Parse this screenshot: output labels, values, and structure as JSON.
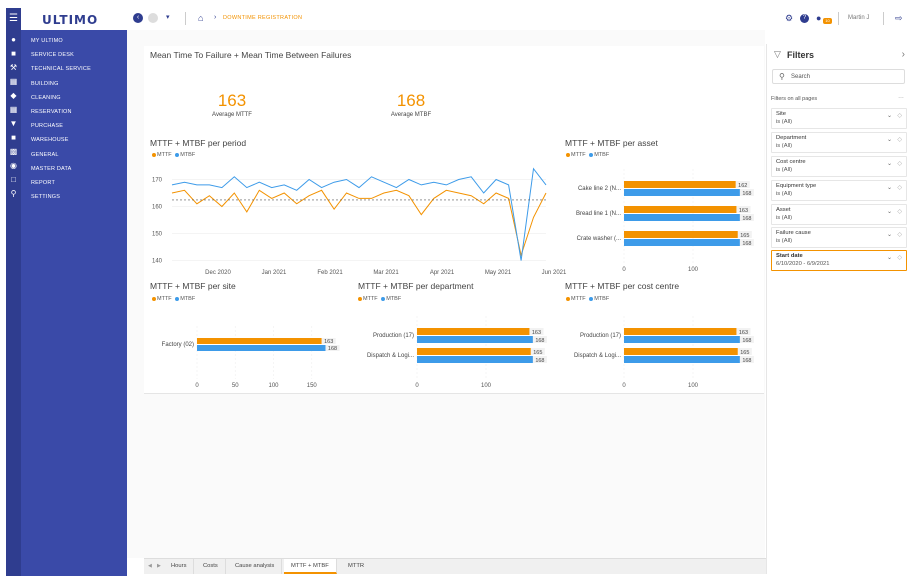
{
  "app": {
    "logo": "Ultimo",
    "breadcrumb": "DOWNTIME REGISTRATION",
    "user": "Martin J",
    "notif_count": "10"
  },
  "sidebar": {
    "items": [
      "MY ULTIMO",
      "SERVICE DESK",
      "TECHNICAL SERVICE",
      "BUILDING",
      "CLEANING",
      "RESERVATION",
      "PURCHASE",
      "WAREHOUSE",
      "GENERAL",
      "MASTER DATA",
      "REPORT",
      "SETTINGS"
    ]
  },
  "dashboard": {
    "title": "Mean Time To Failure + Mean Time Between Failures",
    "kpi_mttf": {
      "value": "163",
      "label": "Average MTTF"
    },
    "kpi_mtbf": {
      "value": "168",
      "label": "Average MTBF"
    },
    "legend_mttf": "MTTF",
    "legend_mtbf": "MTBF",
    "colors": {
      "mttf": "#f39200",
      "mtbf": "#3d9be9"
    }
  },
  "chart_data": [
    {
      "type": "line",
      "title": "MTTF + MTBF per period",
      "x_ticks": [
        "Dec 2020",
        "Jan 2021",
        "Feb 2021",
        "Mar 2021",
        "Apr 2021",
        "May 2021",
        "Jun 2021"
      ],
      "y_ticks": [
        "170",
        "160",
        "150",
        "140"
      ],
      "ylim": [
        138,
        175
      ],
      "series": [
        {
          "name": "MTTF",
          "values": [
            165,
            166,
            161,
            164,
            160,
            165,
            158,
            166,
            163,
            165,
            161,
            164,
            166,
            159,
            165,
            163,
            163,
            165,
            166,
            164,
            157,
            163,
            166,
            165,
            164,
            161,
            165,
            163,
            142,
            156,
            165
          ]
        },
        {
          "name": "MTBF",
          "values": [
            168,
            169,
            168,
            168,
            167,
            171,
            167,
            169,
            167,
            168,
            166,
            170,
            167,
            169,
            170,
            167,
            171,
            169,
            167,
            170,
            168,
            169,
            168,
            170,
            171,
            165,
            170,
            168,
            140,
            174,
            168
          ]
        }
      ]
    },
    {
      "type": "bar",
      "title": "MTTF + MTBF per asset",
      "categories": [
        "Cake line 2 (N...",
        "Bread line 1 (N...",
        "Crate washer (..."
      ],
      "series": [
        {
          "name": "MTTF",
          "values": [
            162,
            163,
            165
          ]
        },
        {
          "name": "MTBF",
          "values": [
            168,
            168,
            168
          ]
        }
      ],
      "x_ticks": [
        "0",
        "100"
      ]
    },
    {
      "type": "bar",
      "title": "MTTF + MTBF per site",
      "categories": [
        "Factory (02)"
      ],
      "series": [
        {
          "name": "MTTF",
          "values": [
            163
          ]
        },
        {
          "name": "MTBF",
          "values": [
            168
          ]
        }
      ],
      "x_ticks": [
        "0",
        "50",
        "100",
        "150"
      ]
    },
    {
      "type": "bar",
      "title": "MTTF + MTBF per department",
      "categories": [
        "Production (17)",
        "Dispatch & Logi..."
      ],
      "series": [
        {
          "name": "MTTF",
          "values": [
            163,
            165
          ]
        },
        {
          "name": "MTBF",
          "values": [
            168,
            168
          ]
        }
      ],
      "x_ticks": [
        "0",
        "100"
      ]
    },
    {
      "type": "bar",
      "title": "MTTF + MTBF per cost centre",
      "categories": [
        "Production (17)",
        "Dispatch & Logi..."
      ],
      "series": [
        {
          "name": "MTTF",
          "values": [
            163,
            165
          ]
        },
        {
          "name": "MTBF",
          "values": [
            168,
            168
          ]
        }
      ],
      "x_ticks": [
        "0",
        "100"
      ]
    }
  ],
  "filters": {
    "title": "Filters",
    "search_placeholder": "Search",
    "on_all_pages": "Filters on all pages",
    "items": [
      {
        "name": "Site",
        "value": "is (All)"
      },
      {
        "name": "Department",
        "value": "is (All)"
      },
      {
        "name": "Cost centre",
        "value": "is (All)"
      },
      {
        "name": "Equipment type",
        "value": "is (All)"
      },
      {
        "name": "Asset",
        "value": "is (All)"
      },
      {
        "name": "Failure cause",
        "value": "is (All)"
      },
      {
        "name": "Start date",
        "value": "6/10/2020 - 6/9/2021"
      }
    ]
  },
  "tabs": [
    "Hours",
    "Costs",
    "Cause analysis",
    "MTTF + MTBF",
    "MTTR"
  ]
}
